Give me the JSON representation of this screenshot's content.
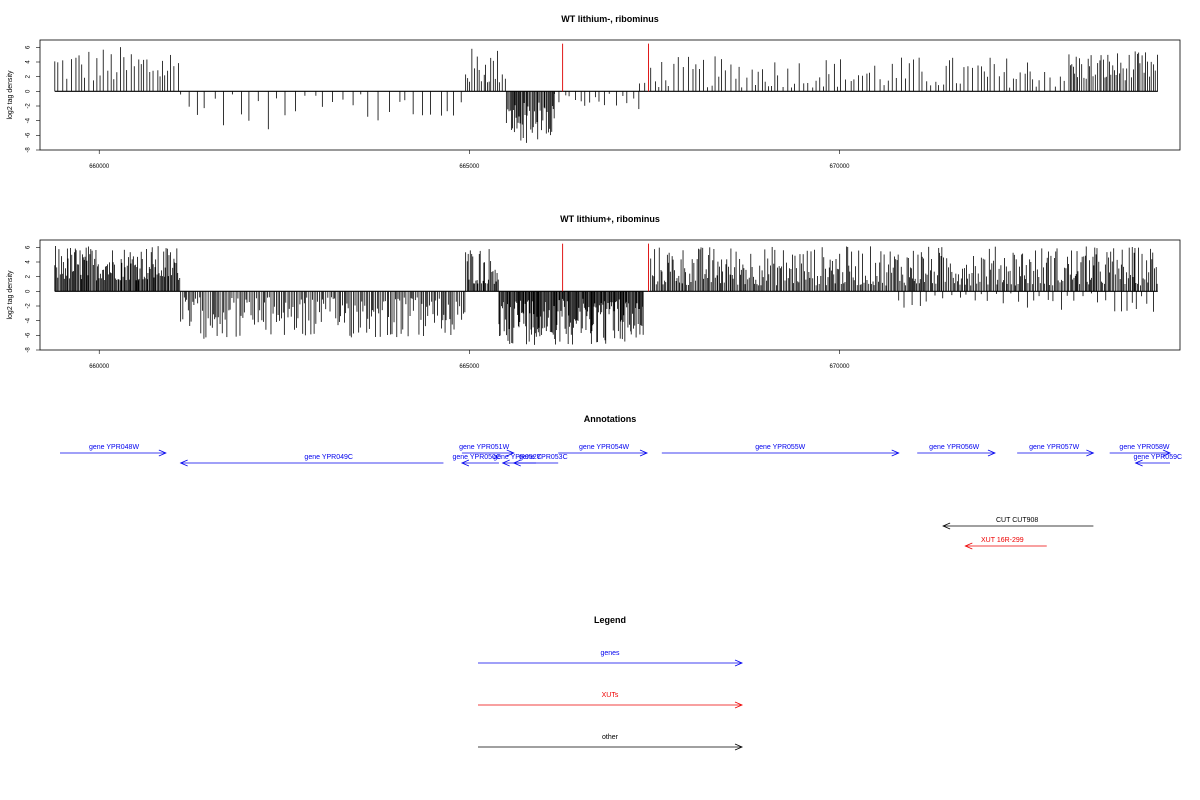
{
  "chart_data": [
    {
      "type": "bar",
      "title": "WT lithium-, ribominus",
      "ylabel": "log2 tag density",
      "ylim": [
        -8,
        7
      ],
      "xlim": [
        659200,
        674600
      ],
      "yticks": [
        -8,
        -6,
        -4,
        -2,
        0,
        2,
        4,
        6
      ],
      "xticks": [
        660000,
        665000,
        670000
      ],
      "markers": [
        666260,
        667420
      ],
      "marker_color": "#dd0000",
      "bar_color": "#000000",
      "data_extent": [
        659400,
        674300
      ],
      "segments": [
        {
          "x0": 659400,
          "x1": 661100,
          "sign": 1,
          "step": 48,
          "amp": [
            1.2,
            6.2
          ]
        },
        {
          "x0": 661100,
          "x1": 664950,
          "sign": -1,
          "step": 110,
          "amp": [
            0.4,
            5.2
          ]
        },
        {
          "x0": 664950,
          "x1": 665500,
          "sign": 1,
          "step": 30,
          "amp": [
            1.0,
            6.0
          ]
        },
        {
          "x0": 665500,
          "x1": 666150,
          "sign": -1,
          "step": 14,
          "amp": [
            1.5,
            7.2
          ]
        },
        {
          "x0": 666150,
          "x1": 667300,
          "sign": -1,
          "step": 70,
          "amp": [
            0.3,
            2.5
          ]
        },
        {
          "x0": 667300,
          "x1": 667400,
          "sign": 1,
          "step": 60,
          "amp": [
            0.5,
            2.0
          ]
        },
        {
          "x0": 667450,
          "x1": 673100,
          "sign": 1,
          "step": 55,
          "amp": [
            0.5,
            4.8
          ]
        },
        {
          "x0": 673100,
          "x1": 674300,
          "sign": 1,
          "step": 24,
          "amp": [
            1.5,
            5.5
          ]
        }
      ]
    },
    {
      "type": "bar",
      "title": "WT lithium+, ribominus",
      "ylabel": "log2 tag density",
      "ylim": [
        -8,
        7
      ],
      "xlim": [
        659200,
        674600
      ],
      "yticks": [
        -8,
        -6,
        -4,
        -2,
        0,
        2,
        4,
        6
      ],
      "xticks": [
        660000,
        665000,
        670000
      ],
      "markers": [
        666260,
        667420
      ],
      "marker_color": "#dd0000",
      "bar_color": "#000000",
      "data_extent": [
        659400,
        674300
      ],
      "segments": [
        {
          "x0": 659400,
          "x1": 661100,
          "sign": 1,
          "step": 14,
          "amp": [
            1.5,
            6.3
          ]
        },
        {
          "x0": 661100,
          "x1": 664950,
          "sign": -1,
          "step": 22,
          "amp": [
            0.8,
            6.5
          ]
        },
        {
          "x0": 664950,
          "x1": 665400,
          "sign": 1,
          "step": 16,
          "amp": [
            1.0,
            6.2
          ]
        },
        {
          "x0": 665400,
          "x1": 667350,
          "sign": -1,
          "step": 12,
          "amp": [
            1.0,
            7.3
          ]
        },
        {
          "x0": 667450,
          "x1": 674300,
          "sign": 1,
          "step": 18,
          "amp": [
            0.8,
            6.2
          ]
        },
        {
          "x0": 670800,
          "x1": 674300,
          "sign": -1,
          "step": 90,
          "amp": [
            0.2,
            2.8
          ]
        }
      ]
    }
  ],
  "annotations": {
    "title": "Annotations",
    "color_genes": "#0000ee",
    "color_xuts": "#ee0000",
    "color_other": "#000000",
    "items": [
      {
        "label": "gene YPR048W",
        "kind": "genes",
        "strand": "+",
        "row": 0,
        "x0": 659000,
        "x1": 660900,
        "lx": 660200
      },
      {
        "label": "gene YPR049C",
        "kind": "genes",
        "strand": "-",
        "row": 1,
        "x0": 661100,
        "x1": 664650,
        "lx": 663100
      },
      {
        "label": "gene YPR051W",
        "kind": "genes",
        "strand": "+",
        "row": 0,
        "x0": 664900,
        "x1": 665600,
        "lx": 665200
      },
      {
        "label": "gene YPR050C",
        "kind": "genes",
        "strand": "-",
        "row": 1,
        "x0": 664900,
        "x1": 665400,
        "lx": 665100
      },
      {
        "label": "gene YPR052C",
        "kind": "genes",
        "strand": "-",
        "row": 1,
        "x0": 665450,
        "x1": 665900,
        "lx": 665650
      },
      {
        "label": "gene YPR053C",
        "kind": "genes",
        "strand": "-",
        "row": 1,
        "x0": 665600,
        "x1": 666200,
        "lx": 666000
      },
      {
        "label": "gene YPR054W",
        "kind": "genes",
        "strand": "+",
        "row": 0,
        "x0": 666200,
        "x1": 667400,
        "lx": 666820
      },
      {
        "label": "gene YPR055W",
        "kind": "genes",
        "strand": "+",
        "row": 0,
        "x0": 667600,
        "x1": 670800,
        "lx": 669200
      },
      {
        "label": "gene YPR056W",
        "kind": "genes",
        "strand": "+",
        "row": 0,
        "x0": 671050,
        "x1": 672100,
        "lx": 671550
      },
      {
        "label": "gene YPR057W",
        "kind": "genes",
        "strand": "+",
        "row": 0,
        "x0": 672400,
        "x1": 673430,
        "lx": 672900
      },
      {
        "label": "gene YPR058W",
        "kind": "genes",
        "strand": "+",
        "row": 0,
        "x0": 673650,
        "x1": 674550,
        "lx": 674120
      },
      {
        "label": "gene YPR059C",
        "kind": "genes",
        "strand": "-",
        "row": 1,
        "x0": 674000,
        "x1": 674500,
        "lx": 674300
      },
      {
        "label": "CUT CUT908",
        "kind": "other",
        "strand": "-",
        "row": 3,
        "x0": 671400,
        "x1": 673430,
        "lx": 672400
      },
      {
        "label": "XUT 16R-299",
        "kind": "xuts",
        "strand": "-",
        "row": 4,
        "x0": 671700,
        "x1": 672800,
        "lx": 672200
      }
    ]
  },
  "legend": {
    "title": "Legend",
    "items": [
      {
        "label": "genes",
        "color": "#0000ee"
      },
      {
        "label": "XUTs",
        "color": "#ee0000"
      },
      {
        "label": "other",
        "color": "#000000"
      }
    ]
  }
}
